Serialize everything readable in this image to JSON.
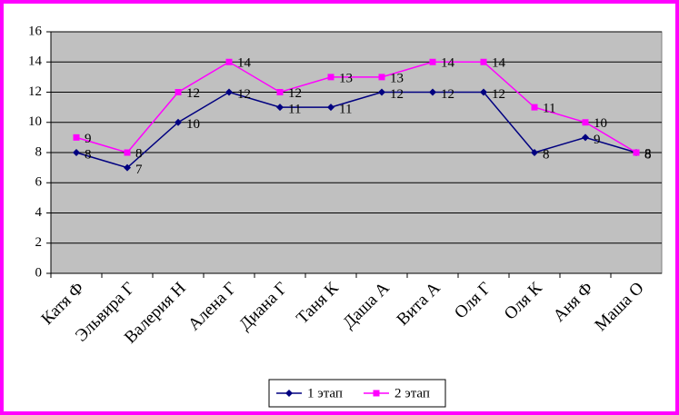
{
  "chart_data": {
    "type": "line",
    "categories": [
      "Катя Ф",
      "Эльвира Г",
      "Валерия Н",
      "Алена Г",
      "Диана Г",
      "Таня К",
      "Даша А",
      "Вита А",
      "Оля Г",
      "Оля К",
      "Аня Ф",
      "Маша О"
    ],
    "series": [
      {
        "name": "1 этап",
        "color": "#000080",
        "values": [
          8,
          7,
          10,
          12,
          11,
          11,
          12,
          12,
          12,
          8,
          9,
          8
        ]
      },
      {
        "name": "2 этап",
        "color": "#ff00ff",
        "values": [
          9,
          8,
          12,
          14,
          12,
          13,
          13,
          14,
          14,
          11,
          10,
          8
        ]
      }
    ],
    "ylim": [
      0,
      16
    ],
    "yticks": [
      0,
      2,
      4,
      6,
      8,
      10,
      12,
      14,
      16
    ],
    "grid": true,
    "legend": "bottom"
  }
}
